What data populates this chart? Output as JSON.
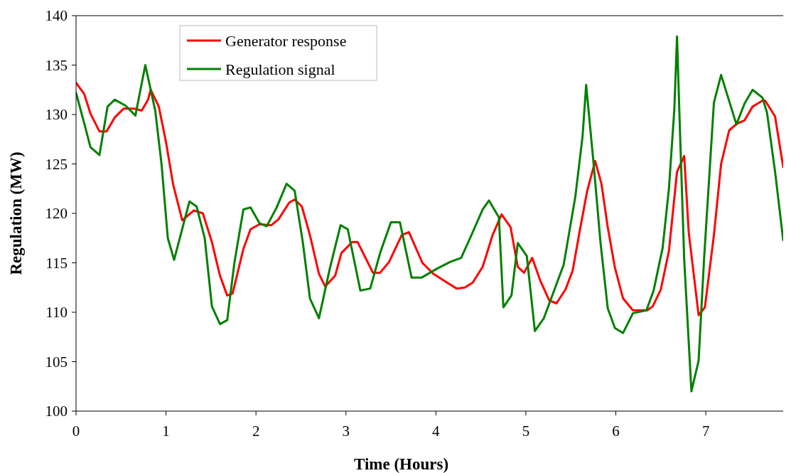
{
  "chart_data": {
    "type": "line",
    "xlabel": "Time (Hours)",
    "ylabel": "Regulation (MW)",
    "xlim": [
      0,
      7.86
    ],
    "xticks": [
      0,
      1,
      2,
      3,
      4,
      5,
      6,
      7
    ],
    "ylim": [
      100,
      140
    ],
    "yticks": [
      100,
      105,
      110,
      115,
      120,
      125,
      130,
      135,
      140
    ],
    "grid": false,
    "legend": "top left",
    "marker": "none",
    "line_style": "solid",
    "series": [
      {
        "name": "Generator response",
        "color": "#ff0000",
        "x": [
          0,
          0.09,
          0.16,
          0.26,
          0.34,
          0.43,
          0.53,
          0.65,
          0.73,
          0.8,
          0.83,
          0.92,
          1,
          1.08,
          1.18,
          1.31,
          1.41,
          1.51,
          1.6,
          1.68,
          1.74,
          1.86,
          1.94,
          2.04,
          2.17,
          2.25,
          2.37,
          2.43,
          2.51,
          2.6,
          2.7,
          2.77,
          2.88,
          2.95,
          3.07,
          3.13,
          3.3,
          3.38,
          3.48,
          3.62,
          3.7,
          3.85,
          3.97,
          4.09,
          4.23,
          4.32,
          4.41,
          4.52,
          4.63,
          4.73,
          4.83,
          4.91,
          4.98,
          5.07,
          5.16,
          5.26,
          5.34,
          5.44,
          5.52,
          5.6,
          5.68,
          5.77,
          5.84,
          5.91,
          5.99,
          6.08,
          6.19,
          6.35,
          6.41,
          6.5,
          6.59,
          6.68,
          6.76,
          6.81,
          6.92,
          6.99,
          7.09,
          7.17,
          7.26,
          7.35,
          7.43,
          7.52,
          7.63,
          7.66,
          7.77,
          7.86
        ],
        "values": [
          133.2,
          132.1,
          130.1,
          128.3,
          128.3,
          129.7,
          130.6,
          130.6,
          130.4,
          131.5,
          132.5,
          130.8,
          127.2,
          122.9,
          119.3,
          120.3,
          120,
          117.1,
          113.7,
          111.7,
          111.9,
          116.4,
          118.4,
          118.9,
          118.8,
          119.4,
          121.1,
          121.4,
          120.7,
          117.8,
          113.9,
          112.6,
          113.7,
          116,
          117.1,
          117.1,
          114,
          114,
          115.1,
          117.8,
          118.1,
          115,
          113.9,
          113.2,
          112.4,
          112.5,
          113,
          114.6,
          117.8,
          119.9,
          118.6,
          114.6,
          114,
          115.5,
          113.2,
          111.2,
          110.9,
          112.3,
          114.2,
          118.3,
          122.2,
          125.3,
          123,
          118.6,
          114.5,
          111.4,
          110.2,
          110.2,
          110.6,
          112.3,
          116.2,
          124.2,
          125.8,
          118.1,
          109.7,
          110.5,
          117.8,
          125,
          128.4,
          129.1,
          129.4,
          130.8,
          131.4,
          131.4,
          129.8,
          124.7
        ]
      },
      {
        "name": "Regulation signal",
        "color": "#008000",
        "x": [
          0,
          0.1,
          0.16,
          0.26,
          0.35,
          0.43,
          0.55,
          0.66,
          0.77,
          0.88,
          0.95,
          1.02,
          1.09,
          1.26,
          1.34,
          1.43,
          1.51,
          1.6,
          1.68,
          1.76,
          1.86,
          1.94,
          2.04,
          2.12,
          2.23,
          2.34,
          2.43,
          2.52,
          2.6,
          2.7,
          2.82,
          2.94,
          3.02,
          3.16,
          3.27,
          3.38,
          3.5,
          3.6,
          3.73,
          3.84,
          4.01,
          4.16,
          4.28,
          4.38,
          4.52,
          4.59,
          4.7,
          4.75,
          4.84,
          4.91,
          5.01,
          5.1,
          5.2,
          5.42,
          5.55,
          5.63,
          5.67,
          5.75,
          5.83,
          5.91,
          5.99,
          6.08,
          6.19,
          6.34,
          6.42,
          6.52,
          6.59,
          6.65,
          6.68,
          6.71,
          6.76,
          6.84,
          6.92,
          6.98,
          7.09,
          7.17,
          7.34,
          7.43,
          7.52,
          7.63,
          7.68,
          7.77,
          7.86
        ],
        "values": [
          132.2,
          128.8,
          126.7,
          125.9,
          130.8,
          131.5,
          130.9,
          129.9,
          135,
          130.4,
          125,
          117.5,
          115.3,
          121.2,
          120.7,
          117.5,
          110.6,
          108.8,
          109.2,
          115,
          120.4,
          120.6,
          119,
          118.7,
          120.6,
          123,
          122.3,
          117.1,
          111.4,
          109.4,
          114.4,
          118.8,
          118.4,
          112.2,
          112.4,
          116,
          119.1,
          119.1,
          113.5,
          113.5,
          114.4,
          115.1,
          115.5,
          117.5,
          120.4,
          121.3,
          119.6,
          110.5,
          111.7,
          117,
          115.7,
          108.1,
          109.4,
          114.8,
          121.7,
          127.8,
          133,
          125.3,
          117,
          110.4,
          108.4,
          107.9,
          109.9,
          110.2,
          112.2,
          116.5,
          122.5,
          130.5,
          137.9,
          129.1,
          115.3,
          102,
          105.1,
          115.3,
          131.2,
          134,
          129,
          131.1,
          132.5,
          131.7,
          130.2,
          124.2,
          117.3
        ]
      }
    ]
  }
}
